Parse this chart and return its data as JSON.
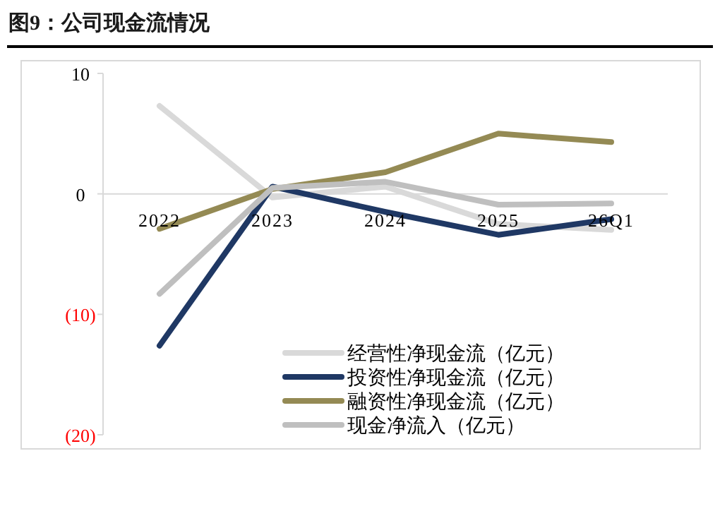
{
  "chart_data": {
    "type": "line",
    "title": "图9：公司现金流情况",
    "categories": [
      "2022",
      "2023",
      "2024",
      "2025",
      "26Q1"
    ],
    "series": [
      {
        "name": "经营性净现金流（亿元）",
        "color": "#d9d9d9",
        "values": [
          7.3,
          -0.3,
          0.6,
          -2.5,
          -3.0
        ]
      },
      {
        "name": "投资性净现金流（亿元）",
        "color": "#1f3864",
        "values": [
          -12.6,
          0.6,
          -1.5,
          -3.4,
          -2.1
        ]
      },
      {
        "name": "融资性净现金流（亿元）",
        "color": "#948a54",
        "values": [
          -2.9,
          0.4,
          1.8,
          5.0,
          4.3
        ]
      },
      {
        "name": "现金净流入（亿元）",
        "color": "#bfbfbf",
        "values": [
          -8.3,
          0.5,
          1.0,
          -0.9,
          -0.8
        ]
      }
    ],
    "ylim": [
      -20,
      10
    ],
    "yticks": [
      10,
      0,
      {
        "value": -10,
        "label": "(10)"
      },
      {
        "value": -20,
        "label": "(20)"
      }
    ],
    "grid": false,
    "legend": "bottom right",
    "marker": "none",
    "line_style": "solid"
  }
}
